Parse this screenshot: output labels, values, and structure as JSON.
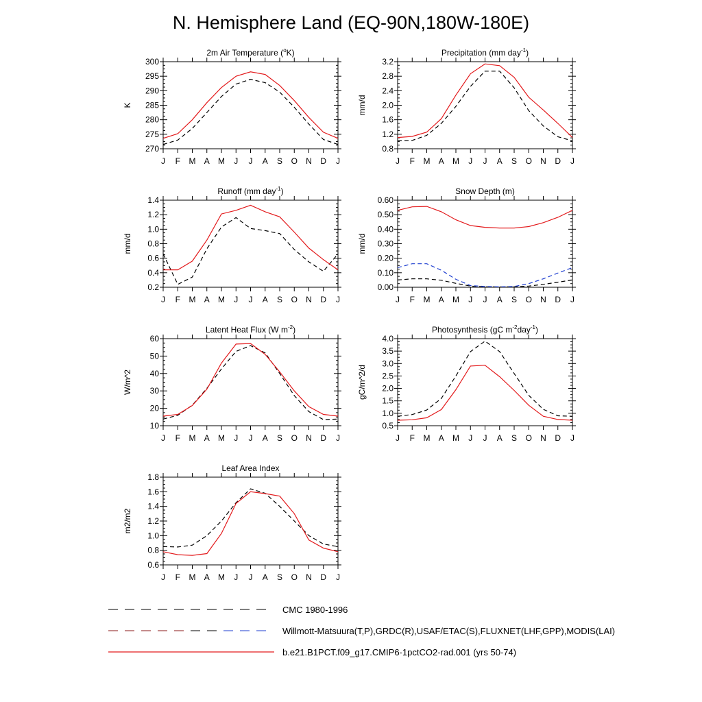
{
  "page_title": "N. Hemisphere Land (EQ-90N,180W-180E)",
  "legend": [
    {
      "label": "CMC 1980-1996",
      "style": "dash",
      "color": "#000000"
    },
    {
      "label": "Willmott-Matsuura(T,P),GRDC(R),USAF/ETAC(S),FLUXNET(LHF,GPP),MODIS(LAI)",
      "style": "dash",
      "color": "#000000"
    },
    {
      "label": "b.e21.B1PCT.f09_g17.CMIP6-1pctCO2-rad.001 (yrs 50-74)",
      "style": "solid",
      "color": "#e31a1c"
    }
  ],
  "chart_data": [
    {
      "type": "line",
      "title": "2m Air Temperature (°K)",
      "title_parts": {
        "pre": "2m Air Temperature (",
        "sup": "o",
        "post": "K)"
      },
      "ylabel": "K",
      "ylim": [
        270,
        300
      ],
      "yticks": [
        "270",
        "275",
        "280",
        "285",
        "290",
        "295",
        "300"
      ],
      "categories": [
        "J",
        "F",
        "M",
        "A",
        "M",
        "J",
        "J",
        "A",
        "S",
        "O",
        "N",
        "D",
        "J"
      ],
      "series": [
        {
          "values": [
            271.5,
            273.0,
            277.0,
            282.5,
            288.0,
            292.3,
            293.9,
            292.8,
            289.5,
            284.3,
            278.5,
            273.2,
            271.5
          ],
          "color": "#000000",
          "dash": true
        },
        {
          "values": [
            273.6,
            275.2,
            280.0,
            285.9,
            291.1,
            295.0,
            296.5,
            295.6,
            291.8,
            286.6,
            280.8,
            275.7,
            273.6
          ],
          "color": "#e31a1c",
          "dash": false
        }
      ]
    },
    {
      "type": "line",
      "title": "Precipitation (mm day-1)",
      "title_parts": {
        "pre": "Precipitation (mm day",
        "sup": "-1",
        "post": ")"
      },
      "ylabel": "mm/d",
      "ylim": [
        0.8,
        3.2
      ],
      "yticks": [
        "0.8",
        "1.2",
        "1.6",
        "2.0",
        "2.4",
        "2.8",
        "3.2"
      ],
      "categories": [
        "J",
        "F",
        "M",
        "A",
        "M",
        "J",
        "J",
        "A",
        "S",
        "O",
        "N",
        "D",
        "J"
      ],
      "series": [
        {
          "values": [
            1.02,
            1.03,
            1.17,
            1.5,
            1.97,
            2.52,
            2.94,
            2.94,
            2.48,
            1.85,
            1.43,
            1.13,
            1.02
          ],
          "color": "#000000",
          "dash": true
        },
        {
          "values": [
            1.11,
            1.14,
            1.26,
            1.63,
            2.28,
            2.87,
            3.14,
            3.09,
            2.77,
            2.22,
            1.87,
            1.5,
            1.11
          ],
          "color": "#e31a1c",
          "dash": false
        }
      ]
    },
    {
      "type": "line",
      "title": "Runoff (mm day-1)",
      "title_parts": {
        "pre": "Runoff (mm day",
        "sup": "-1",
        "post": ")"
      },
      "ylabel": "mm/d",
      "ylim": [
        0.2,
        1.4
      ],
      "yticks": [
        "0.2",
        "0.4",
        "0.6",
        "0.8",
        "1.0",
        "1.2",
        "1.4"
      ],
      "categories": [
        "J",
        "F",
        "M",
        "A",
        "M",
        "J",
        "J",
        "A",
        "S",
        "O",
        "N",
        "D",
        "J"
      ],
      "series": [
        {
          "values": [
            0.66,
            0.24,
            0.34,
            0.73,
            1.03,
            1.16,
            1.01,
            0.98,
            0.94,
            0.72,
            0.55,
            0.42,
            0.66
          ],
          "color": "#000000",
          "dash": true
        },
        {
          "values": [
            0.44,
            0.44,
            0.56,
            0.85,
            1.21,
            1.26,
            1.33,
            1.24,
            1.17,
            0.96,
            0.74,
            0.58,
            0.44
          ],
          "color": "#e31a1c",
          "dash": false
        }
      ]
    },
    {
      "type": "line",
      "title": "Snow Depth (m)",
      "title_parts": {
        "pre": "Snow Depth (m)",
        "sup": "",
        "post": ""
      },
      "ylabel": "mm/d",
      "ylim": [
        0.0,
        0.6
      ],
      "yticks": [
        "0.00",
        "0.10",
        "0.20",
        "0.30",
        "0.40",
        "0.50",
        "0.60"
      ],
      "categories": [
        "J",
        "F",
        "M",
        "A",
        "M",
        "J",
        "J",
        "A",
        "S",
        "O",
        "N",
        "D",
        "J"
      ],
      "series": [
        {
          "values": [
            0.05,
            0.058,
            0.058,
            0.048,
            0.027,
            0.008,
            0.003,
            0.002,
            0.003,
            0.008,
            0.02,
            0.035,
            0.05
          ],
          "color": "#000000",
          "dash": true
        },
        {
          "values": [
            0.135,
            0.162,
            0.162,
            0.117,
            0.055,
            0.012,
            0.005,
            0.003,
            0.005,
            0.025,
            0.058,
            0.098,
            0.135
          ],
          "color": "#1f3fd0",
          "dash": true
        },
        {
          "values": [
            0.53,
            0.554,
            0.557,
            0.52,
            0.465,
            0.425,
            0.413,
            0.408,
            0.408,
            0.418,
            0.445,
            0.482,
            0.53
          ],
          "color": "#e31a1c",
          "dash": false
        }
      ]
    },
    {
      "type": "line",
      "title": "Latent Heat Flux (W m-2)",
      "title_parts": {
        "pre": "Latent Heat Flux (W m",
        "sup": "-2",
        "post": ")"
      },
      "ylabel": "W/m^2",
      "ylim": [
        10,
        60
      ],
      "yticks": [
        "10",
        "20",
        "30",
        "40",
        "50",
        "60"
      ],
      "categories": [
        "J",
        "F",
        "M",
        "A",
        "M",
        "J",
        "J",
        "A",
        "S",
        "O",
        "N",
        "D",
        "J"
      ],
      "series": [
        {
          "values": [
            13.8,
            16.0,
            21.8,
            31.5,
            42.6,
            52.7,
            56.0,
            51.8,
            40.0,
            27.3,
            18.1,
            13.5,
            13.8
          ],
          "color": "#000000",
          "dash": true
        },
        {
          "values": [
            15.5,
            16.5,
            21.6,
            31.0,
            46.0,
            56.9,
            57.2,
            51.0,
            40.9,
            30.0,
            21.0,
            16.5,
            15.5
          ],
          "color": "#e31a1c",
          "dash": false
        }
      ]
    },
    {
      "type": "line",
      "title": "Photosynthesis (gC m-2day-1)",
      "title_parts": {
        "pre": "Photosynthesis (gC m",
        "sup": "-2",
        "post": "day",
        "sup2": "-1",
        "post2": ")"
      },
      "ylabel": "gC/m^2/d",
      "ylim": [
        0.5,
        4.0
      ],
      "yticks": [
        "0.5",
        "1.0",
        "1.5",
        "2.0",
        "2.5",
        "3.0",
        "3.5",
        "4.0"
      ],
      "categories": [
        "J",
        "F",
        "M",
        "A",
        "M",
        "J",
        "J",
        "A",
        "S",
        "O",
        "N",
        "D",
        "J"
      ],
      "series": [
        {
          "values": [
            0.88,
            0.95,
            1.13,
            1.6,
            2.5,
            3.48,
            3.9,
            3.48,
            2.6,
            1.72,
            1.16,
            0.9,
            0.88
          ],
          "color": "#000000",
          "dash": true
        },
        {
          "values": [
            0.72,
            0.74,
            0.82,
            1.15,
            1.95,
            2.9,
            2.93,
            2.47,
            1.92,
            1.32,
            0.88,
            0.75,
            0.72
          ],
          "color": "#e31a1c",
          "dash": false
        }
      ]
    },
    {
      "type": "line",
      "title": "Leaf Area Index",
      "title_parts": {
        "pre": "Leaf Area Index",
        "sup": "",
        "post": ""
      },
      "ylabel": "m2/m2",
      "ylim": [
        0.6,
        1.8
      ],
      "yticks": [
        "0.6",
        "0.8",
        "1.0",
        "1.2",
        "1.4",
        "1.6",
        "1.8"
      ],
      "categories": [
        "J",
        "F",
        "M",
        "A",
        "M",
        "J",
        "J",
        "A",
        "S",
        "O",
        "N",
        "D",
        "J"
      ],
      "series": [
        {
          "values": [
            0.85,
            0.845,
            0.87,
            1.0,
            1.2,
            1.45,
            1.64,
            1.58,
            1.4,
            1.2,
            1.0,
            0.885,
            0.85
          ],
          "color": "#000000",
          "dash": true
        },
        {
          "values": [
            0.78,
            0.74,
            0.73,
            0.755,
            1.03,
            1.44,
            1.6,
            1.575,
            1.54,
            1.3,
            0.94,
            0.83,
            0.78
          ],
          "color": "#e31a1c",
          "dash": false
        }
      ]
    }
  ]
}
